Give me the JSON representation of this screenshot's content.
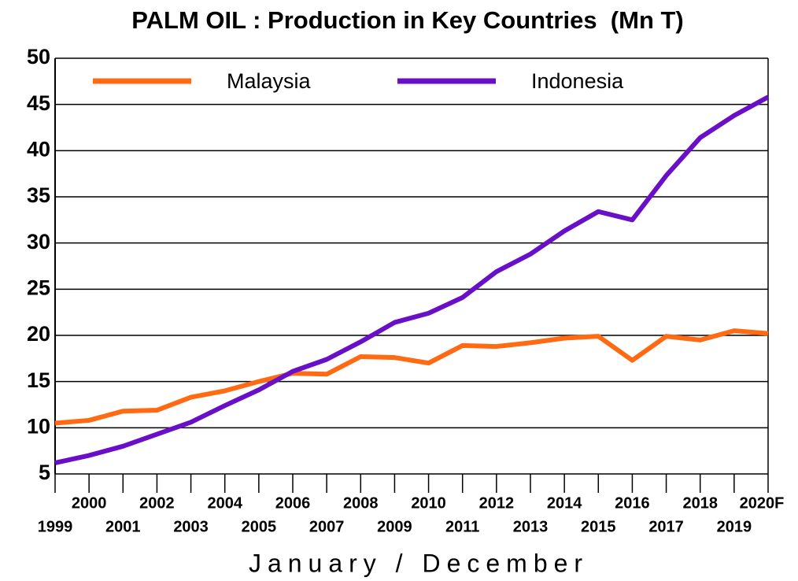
{
  "chart_data": {
    "type": "line",
    "title": "PALM OIL : Production in Key Countries  (Mn T)",
    "x_label": "January / December",
    "categories": [
      "1999",
      "2000",
      "2001",
      "2002",
      "2003",
      "2004",
      "2005",
      "2006",
      "2007",
      "2008",
      "2009",
      "2010",
      "2011",
      "2012",
      "2013",
      "2014",
      "2015",
      "2016",
      "2017",
      "2018",
      "2019",
      "2020F"
    ],
    "series": [
      {
        "name": "Malaysia",
        "color": "#ff6a13",
        "values": [
          10.5,
          10.8,
          11.8,
          11.9,
          13.3,
          14.0,
          15.0,
          15.9,
          15.8,
          17.7,
          17.6,
          17.0,
          18.9,
          18.8,
          19.2,
          19.7,
          19.9,
          17.3,
          19.9,
          19.5,
          20.5,
          20.2
        ]
      },
      {
        "name": "Indonesia",
        "color": "#6a0fc8",
        "values": [
          6.2,
          7.0,
          8.0,
          9.3,
          10.6,
          12.4,
          14.1,
          16.1,
          17.4,
          19.3,
          21.4,
          22.4,
          24.1,
          26.9,
          28.8,
          31.3,
          33.4,
          32.5,
          37.3,
          41.4,
          43.8,
          45.8
        ]
      }
    ],
    "ylim": [
      5,
      50
    ],
    "yticks": [
      5,
      10,
      15,
      20,
      25,
      30,
      35,
      40,
      45,
      50
    ],
    "grid": true,
    "legend": "top"
  }
}
